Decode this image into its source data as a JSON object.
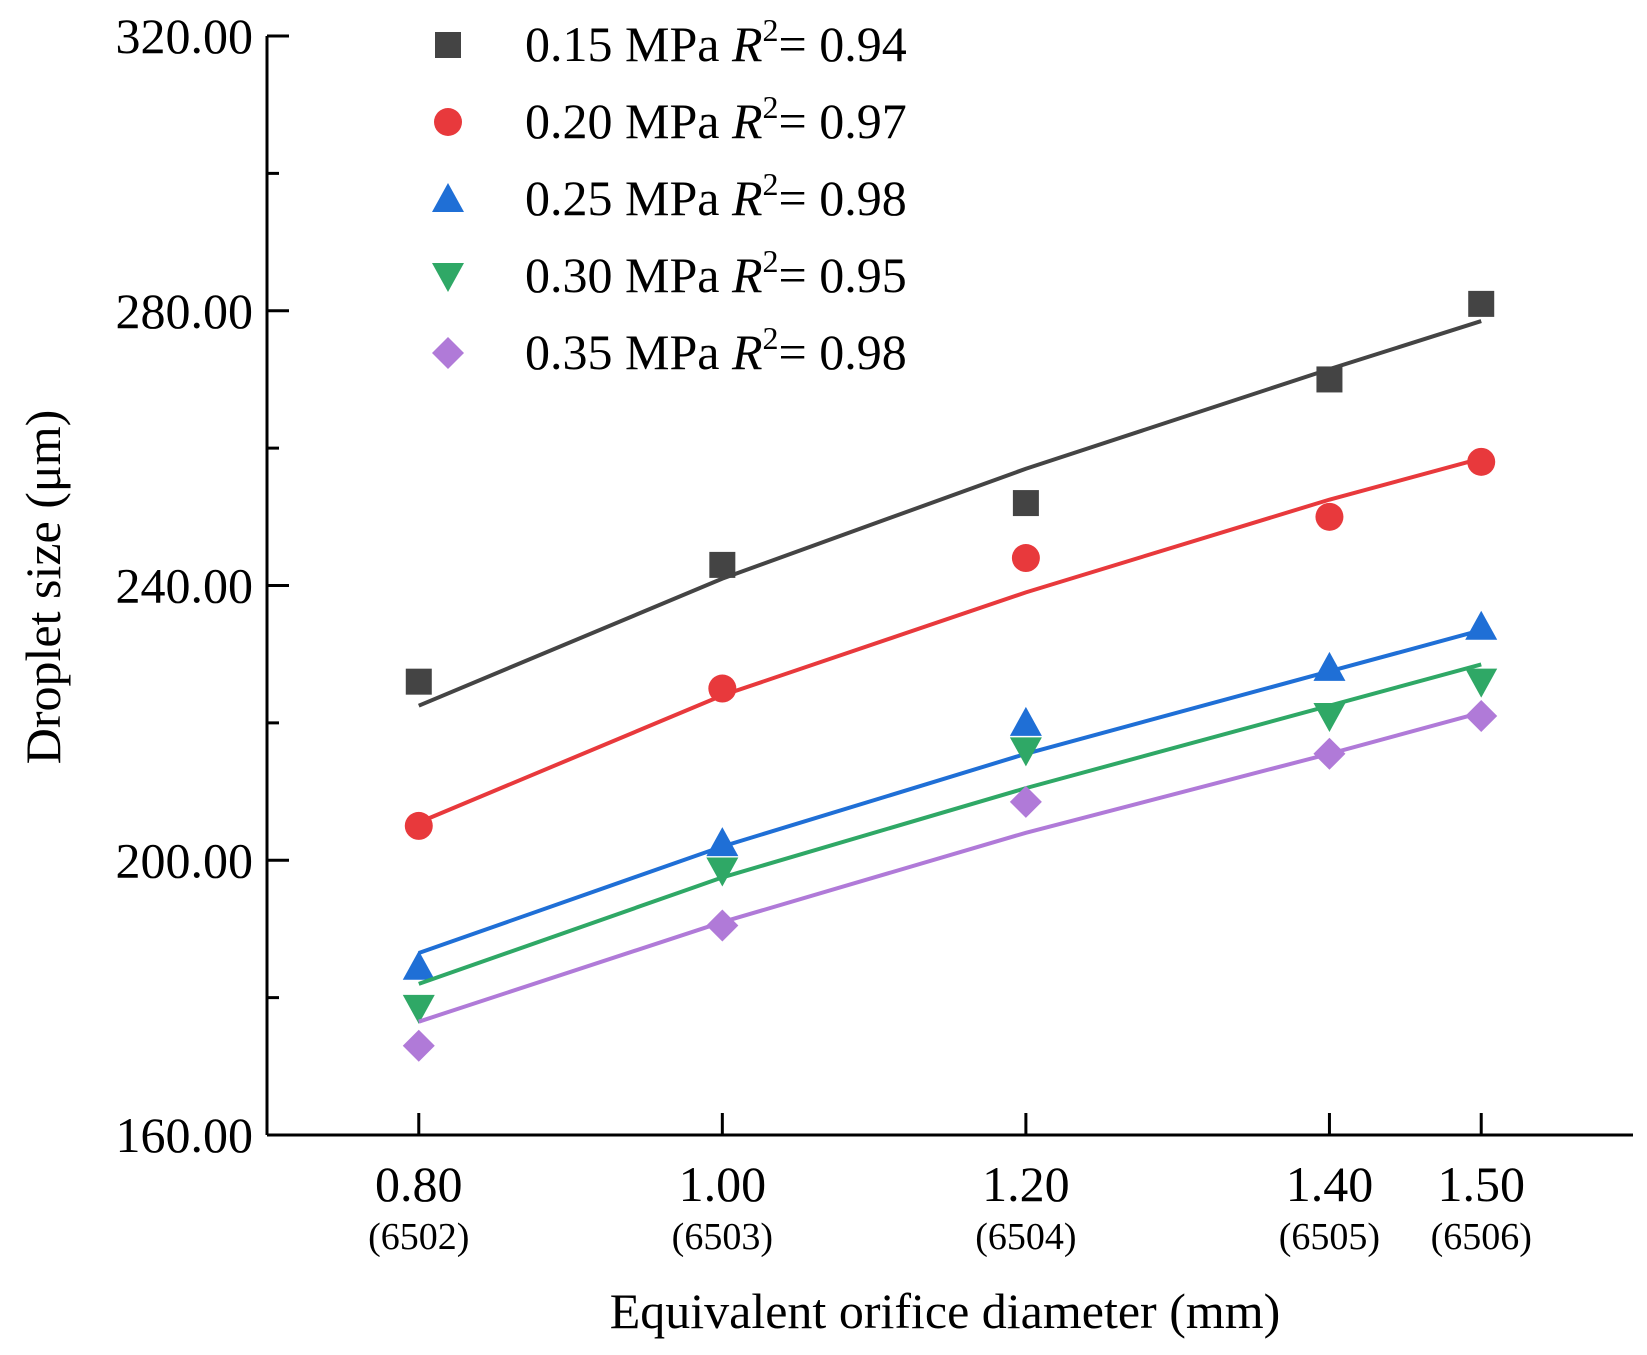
{
  "chart_data": {
    "type": "scatter",
    "title": "",
    "xlabel": "Equivalent orifice diameter (mm)",
    "ylabel": "Droplet size (μm)",
    "x": [
      0.8,
      1.0,
      1.2,
      1.4,
      1.5
    ],
    "x_tick_labels": [
      "0.80",
      "1.00",
      "1.20",
      "1.40",
      "1.50"
    ],
    "x_tick_sublabels": [
      "(6502)",
      "(6503)",
      "(6504)",
      "(6505)",
      "(6506)"
    ],
    "xlim": [
      0.7,
      1.6
    ],
    "ylim": [
      160,
      320
    ],
    "y_ticks": [
      160,
      200,
      240,
      280,
      320
    ],
    "y_tick_labels": [
      "160.00",
      "200.00",
      "240.00",
      "280.00",
      "320.00"
    ],
    "y_minor_ticks": [
      180,
      220,
      260,
      300
    ],
    "grid": false,
    "legend_position": "top-left",
    "series": [
      {
        "name": "0.15 MPa",
        "pressure": "0.15 MPa",
        "r2_label": "R",
        "r2_exp": "2",
        "r2_value": "= 0.94",
        "marker": "square",
        "color": "#444444",
        "values": [
          226,
          243,
          252,
          270,
          281
        ],
        "fit": [
          222.5,
          241,
          257,
          271.5,
          278.5
        ]
      },
      {
        "name": "0.20 MPa",
        "pressure": "0.20 MPa",
        "r2_label": "R",
        "r2_exp": "2",
        "r2_value": "= 0.97",
        "marker": "circle",
        "color": "#e8393c",
        "values": [
          205,
          225,
          244,
          250,
          258
        ],
        "fit": [
          205.5,
          224,
          239,
          252.5,
          258.5
        ]
      },
      {
        "name": "0.25 MPa",
        "pressure": "0.25 MPa",
        "r2_label": "R",
        "r2_exp": "2",
        "r2_value": "= 0.98",
        "marker": "triangle-up",
        "color": "#1f6fd6",
        "values": [
          184.5,
          202.5,
          220,
          228,
          234
        ],
        "fit": [
          186.5,
          202,
          215.5,
          227.5,
          233.5
        ]
      },
      {
        "name": "0.30 MPa",
        "pressure": "0.30 MPa",
        "r2_label": "R",
        "r2_exp": "2",
        "r2_value": "= 0.95",
        "marker": "triangle-down",
        "color": "#2fa866",
        "values": [
          178.5,
          198.5,
          216,
          221,
          226
        ],
        "fit": [
          182,
          197.5,
          210.5,
          222.5,
          228.5
        ]
      },
      {
        "name": "0.35 MPa",
        "pressure": "0.35 MPa",
        "r2_label": "R",
        "r2_exp": "2",
        "r2_value": "= 0.98",
        "marker": "diamond",
        "color": "#b07ad8",
        "values": [
          173,
          190.5,
          208.5,
          215.5,
          221
        ],
        "fit": [
          176.5,
          191,
          204,
          215.5,
          221.5
        ]
      }
    ]
  }
}
